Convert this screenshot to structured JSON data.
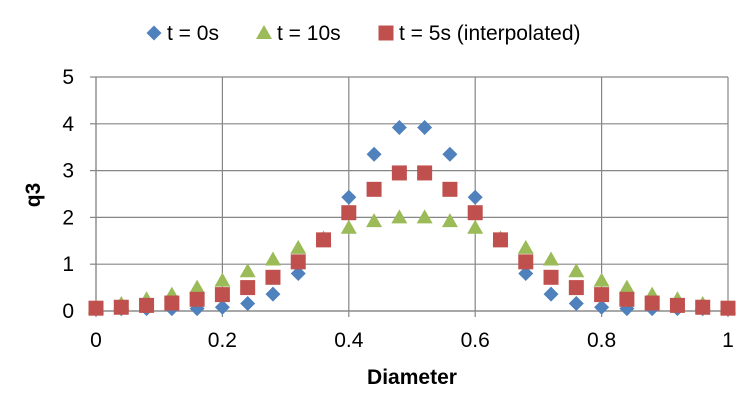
{
  "chart_data": {
    "type": "scatter",
    "title": "",
    "xlabel": "Diameter",
    "ylabel": "q3",
    "xlim": [
      0,
      1
    ],
    "ylim": [
      0,
      5
    ],
    "xticks": [
      "0",
      "0.2",
      "0.4",
      "0.6",
      "0.8",
      "1"
    ],
    "yticks": [
      "0",
      "1",
      "2",
      "3",
      "4",
      "5"
    ],
    "grid": true,
    "legend_position": "top",
    "series": [
      {
        "name": "t = 0s",
        "marker": "diamond",
        "color": "#4F81BD",
        "x": [
          0,
          0.04,
          0.08,
          0.12,
          0.16,
          0.2,
          0.24,
          0.28,
          0.32,
          0.36,
          0.4,
          0.44,
          0.48,
          0.52,
          0.56,
          0.6,
          0.64,
          0.68,
          0.72,
          0.76,
          0.8,
          0.84,
          0.88,
          0.92,
          0.96,
          1
        ],
        "y": [
          0.05,
          0.05,
          0.05,
          0.05,
          0.05,
          0.08,
          0.16,
          0.36,
          0.8,
          1.52,
          2.43,
          3.35,
          3.92,
          3.92,
          3.35,
          2.43,
          1.52,
          0.8,
          0.36,
          0.16,
          0.08,
          0.05,
          0.05,
          0.05,
          0.05,
          0.05
        ]
      },
      {
        "name": "t = 10s",
        "marker": "triangle",
        "color": "#9BBB59",
        "x": [
          0,
          0.04,
          0.08,
          0.12,
          0.16,
          0.2,
          0.24,
          0.28,
          0.32,
          0.36,
          0.4,
          0.44,
          0.48,
          0.52,
          0.56,
          0.6,
          0.64,
          0.68,
          0.72,
          0.76,
          0.8,
          0.84,
          0.88,
          0.92,
          0.96,
          1
        ],
        "y": [
          0.08,
          0.15,
          0.25,
          0.35,
          0.5,
          0.65,
          0.85,
          1.1,
          1.35,
          1.55,
          1.78,
          1.92,
          2.0,
          2.0,
          1.92,
          1.78,
          1.55,
          1.35,
          1.1,
          0.85,
          0.65,
          0.5,
          0.35,
          0.25,
          0.15,
          0.08
        ]
      },
      {
        "name": "t = 5s (interpolated)",
        "marker": "square",
        "color": "#C0504D",
        "x": [
          0,
          0.04,
          0.08,
          0.12,
          0.16,
          0.2,
          0.24,
          0.28,
          0.32,
          0.36,
          0.4,
          0.44,
          0.48,
          0.52,
          0.56,
          0.6,
          0.64,
          0.68,
          0.72,
          0.76,
          0.8,
          0.84,
          0.88,
          0.92,
          0.96,
          1
        ],
        "y": [
          0.06,
          0.08,
          0.12,
          0.17,
          0.25,
          0.35,
          0.5,
          0.72,
          1.05,
          1.52,
          2.1,
          2.6,
          2.95,
          2.95,
          2.6,
          2.1,
          1.52,
          1.05,
          0.72,
          0.5,
          0.35,
          0.25,
          0.17,
          0.12,
          0.08,
          0.06
        ]
      }
    ]
  }
}
